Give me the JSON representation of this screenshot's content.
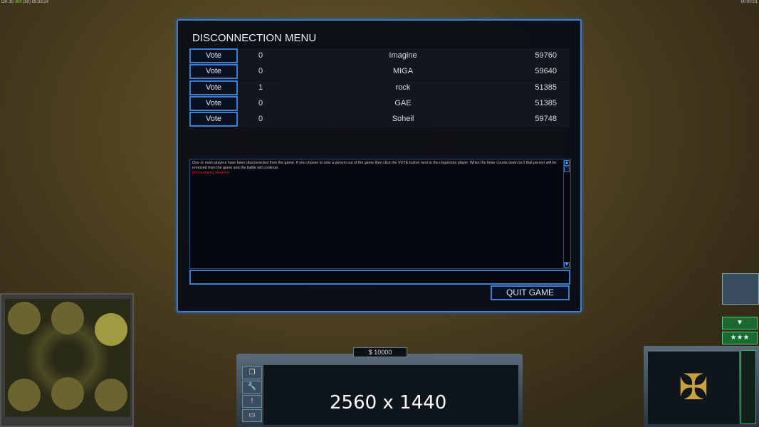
{
  "hud": {
    "top_left_a": "DR 30",
    "top_left_b": "36ft",
    "top_left_c": "(60)",
    "top_left_time": "09:33:24",
    "top_right_time": "00:00:01",
    "money": "$ 10000",
    "resolution_label": "2560 x 1440"
  },
  "dialog": {
    "title": "DISCONNECTION MENU",
    "players": [
      {
        "vote": "Vote",
        "count": "0",
        "name": "Imagine",
        "ping": "59760"
      },
      {
        "vote": "Vote",
        "count": "0",
        "name": "MIGA",
        "ping": "59640"
      },
      {
        "vote": "Vote",
        "count": "1",
        "name": "rock",
        "ping": "51385"
      },
      {
        "vote": "Vote",
        "count": "0",
        "name": "GAE",
        "ping": "51385"
      },
      {
        "vote": "Vote",
        "count": "0",
        "name": "Soheil",
        "ping": "59748"
      }
    ],
    "message": "One or more players have been disconnected from the game. If you choose to vote a person out of the game then click the VOTE button next to the respective player. When the timer counts down to 0 that person will be removed from the game and the battle will continue.",
    "status": "[Unreadable] disabled",
    "chat_input": "",
    "quit_label": "QUIT GAME"
  },
  "colors": {
    "accent": "#3a7fd0",
    "status_red": "#d02020"
  }
}
